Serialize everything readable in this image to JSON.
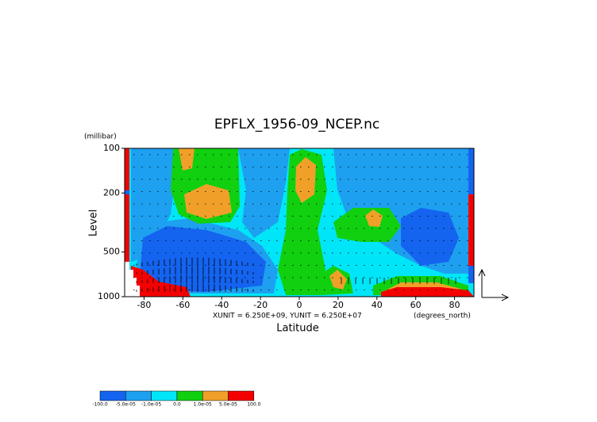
{
  "chart_data": {
    "type": "contour",
    "title": "EPFLX_1956-09_NCEP.nc",
    "x_label": "Latitude",
    "y_label": "Level",
    "y_unit": "(millibar)",
    "x_unit": "(degrees_north)",
    "annotation": "XUNIT = 6.250E+09, YUNIT = 6.250E+07",
    "xlim": [
      -90,
      90
    ],
    "xticks": [
      -80,
      -60,
      -40,
      -20,
      0,
      20,
      40,
      60,
      80
    ],
    "ylim": [
      1000,
      100
    ],
    "yticks": [
      100,
      200,
      500,
      1000
    ],
    "ylog": true,
    "colorbar": {
      "colors": [
        "#1464f0",
        "#1ea0f0",
        "#00e6f8",
        "#10d010",
        "#f0a028",
        "#f50000"
      ],
      "labels": [
        "-100.0",
        "-5.0e-05",
        "-1.0e-05",
        "0.0",
        "1.0e-05",
        "5.0e-05",
        "100.0"
      ]
    }
  }
}
